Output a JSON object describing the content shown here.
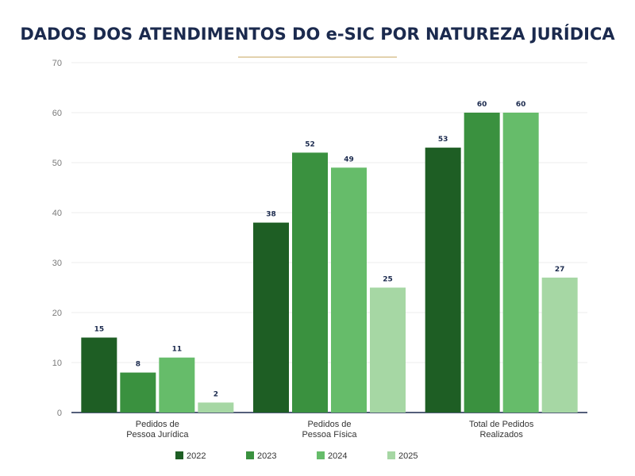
{
  "title": "DADOS DOS ATENDIMENTOS DO e-SIC POR NATUREZA JURÍDICA",
  "colors": {
    "title": "#1b2a4e",
    "title_rule": "#e3d2ad",
    "axis": "#1b2a4e",
    "grid": "#eeeeee",
    "series": [
      "#1e5e24",
      "#3a913f",
      "#66bc6a",
      "#a6d7a4"
    ]
  },
  "chart_data": {
    "type": "bar",
    "title": "DADOS DOS ATENDIMENTOS DO e-SIC POR NATUREZA JURÍDICA",
    "xlabel": "",
    "ylabel": "",
    "ylim": [
      0,
      70
    ],
    "yticks": [
      0,
      10,
      20,
      30,
      40,
      50,
      60,
      70
    ],
    "grid": true,
    "legend_position": "bottom",
    "categories": [
      [
        "Pedidos de",
        "Pessoa Jurídica"
      ],
      [
        "Pedidos de",
        "Pessoa Física"
      ],
      [
        "Total de Pedidos",
        "Realizados"
      ]
    ],
    "series": [
      {
        "name": "2022",
        "values": [
          15,
          38,
          53
        ]
      },
      {
        "name": "2023",
        "values": [
          8,
          52,
          60
        ]
      },
      {
        "name": "2024",
        "values": [
          11,
          49,
          60
        ]
      },
      {
        "name": "2025",
        "values": [
          2,
          25,
          27
        ]
      }
    ]
  }
}
